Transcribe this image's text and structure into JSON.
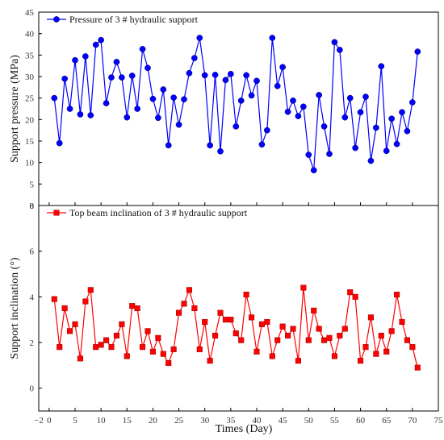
{
  "chart_data": [
    {
      "type": "line",
      "ylabel": "Support pressure (MPa)",
      "xlim": [
        -2,
        75
      ],
      "ylim": [
        0,
        45
      ],
      "x_ticks": [
        -2,
        0,
        5,
        10,
        15,
        20,
        25,
        30,
        35,
        40,
        45,
        50,
        55,
        60,
        65,
        70,
        75
      ],
      "y_ticks": [
        0,
        5,
        10,
        15,
        20,
        25,
        30,
        35,
        40,
        45
      ],
      "grid": false,
      "legend_position": "top-left",
      "series": [
        {
          "name": "Pressure of 3 # hydraulic support",
          "color": "#0000ff",
          "marker": "circle",
          "x": [
            1,
            2,
            3,
            4,
            5,
            6,
            7,
            8,
            9,
            10,
            11,
            12,
            13,
            14,
            15,
            16,
            17,
            18,
            19,
            20,
            21,
            22,
            23,
            24,
            25,
            26,
            27,
            28,
            29,
            30,
            31,
            32,
            33,
            34,
            35,
            36,
            37,
            38,
            39,
            40,
            41,
            42,
            43,
            44,
            45,
            46,
            47,
            48,
            49,
            50,
            51,
            52,
            53,
            54,
            55,
            56,
            57,
            58,
            59,
            60,
            61,
            62,
            63,
            64,
            65,
            66,
            67,
            68,
            69,
            70,
            71
          ],
          "y": [
            25,
            14.5,
            29.5,
            22.5,
            33.8,
            21.2,
            34.7,
            21,
            37.4,
            38.5,
            23.8,
            29.8,
            33.4,
            29.8,
            20.5,
            30.2,
            22.5,
            36.4,
            32,
            24.8,
            20.4,
            27,
            14,
            25.1,
            18.8,
            24.7,
            30.8,
            34.3,
            39,
            30.3,
            14,
            30.4,
            12.6,
            29.2,
            30.6,
            18.4,
            24.4,
            30.3,
            25.6,
            29,
            14.2,
            17.5,
            39,
            27.8,
            32.2,
            21.8,
            24.4,
            20.8,
            23,
            11.8,
            8.2,
            25.7,
            18.4,
            12,
            38,
            36.2,
            20.5,
            25,
            13.4,
            21.7,
            25.3,
            10.4,
            18.1,
            32.4,
            12.7,
            20.2,
            14.3,
            21.7,
            17.3,
            24,
            35.8
          ]
        }
      ]
    },
    {
      "type": "line",
      "xlabel": "Times (Day)",
      "ylabel": "Support inclination (°)",
      "xlim": [
        -2,
        75
      ],
      "ylim": [
        -1,
        8
      ],
      "x_ticks": [
        -2,
        0,
        5,
        10,
        15,
        20,
        25,
        30,
        35,
        40,
        45,
        50,
        55,
        60,
        65,
        70,
        75
      ],
      "y_ticks": [
        0,
        2,
        4,
        6,
        8
      ],
      "grid": false,
      "legend_position": "top-left",
      "series": [
        {
          "name": "Top beam inclination of 3 # hydraulic support",
          "color": "#ff0000",
          "marker": "square",
          "x": [
            1,
            2,
            3,
            4,
            5,
            6,
            7,
            8,
            9,
            10,
            11,
            12,
            13,
            14,
            15,
            16,
            17,
            18,
            19,
            20,
            21,
            22,
            23,
            24,
            25,
            26,
            27,
            28,
            29,
            30,
            31,
            32,
            33,
            34,
            35,
            36,
            37,
            38,
            39,
            40,
            41,
            42,
            43,
            44,
            45,
            46,
            47,
            48,
            49,
            50,
            51,
            52,
            53,
            54,
            55,
            56,
            57,
            58,
            59,
            60,
            61,
            62,
            63,
            64,
            65,
            66,
            67,
            68,
            69,
            70,
            71
          ],
          "y": [
            3.9,
            1.8,
            3.5,
            2.5,
            2.8,
            1.3,
            3.8,
            4.3,
            1.8,
            1.9,
            2.1,
            1.8,
            2.3,
            2.8,
            1.4,
            3.6,
            3.5,
            1.8,
            2.5,
            1.6,
            2.2,
            1.5,
            1.1,
            1.7,
            3.3,
            3.7,
            4.3,
            3.5,
            1.7,
            2.9,
            1.2,
            2.3,
            3.3,
            3,
            3,
            2.4,
            2.1,
            4.1,
            3.1,
            1.6,
            2.8,
            2.9,
            1.4,
            2.1,
            2.7,
            2.3,
            2.6,
            1.2,
            4.4,
            2.1,
            3.4,
            2.6,
            2.1,
            2.2,
            1.4,
            2.3,
            2.6,
            4.2,
            4,
            1.2,
            1.8,
            3.1,
            1.5,
            2.3,
            1.6,
            2.5,
            4.1,
            2.9,
            2.1,
            1.8,
            0.9
          ]
        }
      ]
    }
  ]
}
